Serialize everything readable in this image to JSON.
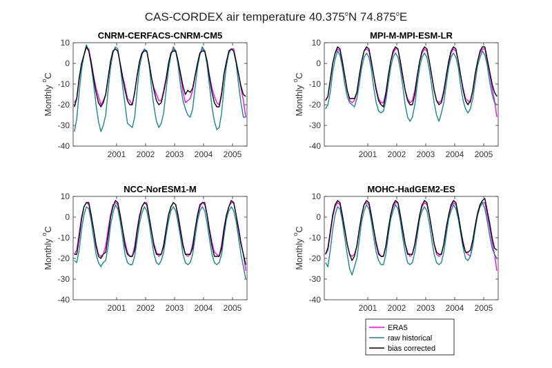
{
  "figure": {
    "title": "CAS-CORDEX air temperature 40.375",
    "title_deg1": "o",
    "title_mid": "N 74.875",
    "title_deg2": "o",
    "title_end": "E"
  },
  "colors": {
    "era5": "#ff00ff",
    "raw": "#138a87",
    "bias": "#000000"
  },
  "legend": {
    "placement": "bottom-right",
    "items": [
      "ERA5",
      "raw historical",
      "bias corrected"
    ]
  },
  "axis": {
    "ylabel_text": "Monthly ",
    "ylabel_sup": "o",
    "ylabel_unit": "C",
    "yticks": [
      "10",
      "0",
      "-10",
      "-20",
      "-30",
      "-40"
    ],
    "xticks": [
      "2001",
      "2002",
      "2003",
      "2004",
      "2005"
    ]
  },
  "chart_data": [
    {
      "type": "line",
      "title": "CNRM-CERFACS-CNRM-CM5",
      "xlim": [
        2000.0,
        2006.0
      ],
      "ylim": [
        -40,
        10
      ],
      "x_start": 2000.04,
      "x_step_months": 1,
      "series": [
        {
          "name": "ERA5",
          "values": [
            -19,
            -17,
            -8,
            0,
            4,
            8,
            7,
            1,
            -6,
            -12,
            -16,
            -20,
            -18,
            -15,
            -7,
            1,
            6,
            7,
            6,
            0,
            -6,
            -11,
            -17,
            -18,
            -20,
            -14,
            -6,
            1,
            5,
            7,
            6,
            0,
            -7,
            -12,
            -15,
            -18,
            -18,
            -13,
            -7,
            0,
            5,
            7,
            6,
            1,
            -6,
            -14,
            -19,
            -18,
            -17,
            -13,
            -6,
            0,
            5,
            7,
            6,
            1,
            -6,
            -12,
            -16,
            -19,
            -20,
            -14,
            -5,
            1,
            5,
            7,
            7,
            1,
            -5,
            -12,
            -18,
            -26
          ]
        },
        {
          "name": "raw historical",
          "values": [
            -33,
            -27,
            -14,
            -3,
            4,
            9,
            6,
            -1,
            -10,
            -20,
            -28,
            -33,
            -30,
            -25,
            -13,
            -2,
            5,
            8,
            7,
            -1,
            -11,
            -20,
            -29,
            -30,
            -31,
            -26,
            -13,
            -2,
            4,
            7,
            6,
            -1,
            -12,
            -21,
            -28,
            -31,
            -29,
            -24,
            -13,
            -3,
            4,
            8,
            6,
            -1,
            -11,
            -18,
            -22,
            -25,
            -26,
            -22,
            -12,
            -2,
            4,
            8,
            6,
            -1,
            -11,
            -21,
            -28,
            -32,
            -31,
            -24,
            -11,
            -1,
            5,
            7,
            6,
            0,
            -10,
            -19,
            -26,
            -26
          ]
        },
        {
          "name": "bias corrected",
          "values": [
            -21,
            -17,
            -7,
            0,
            4,
            8,
            6,
            0,
            -7,
            -14,
            -19,
            -21,
            -19,
            -15,
            -7,
            1,
            6,
            7,
            6,
            0,
            -7,
            -13,
            -18,
            -20,
            -20,
            -14,
            -6,
            1,
            5,
            6,
            6,
            0,
            -7,
            -13,
            -18,
            -20,
            -19,
            -14,
            -8,
            0,
            5,
            6,
            6,
            1,
            -5,
            -11,
            -15,
            -13,
            -14,
            -12,
            -6,
            0,
            5,
            6,
            6,
            1,
            -7,
            -14,
            -19,
            -21,
            -21,
            -15,
            -5,
            1,
            6,
            7,
            6,
            1,
            -5,
            -11,
            -15,
            -16
          ]
        }
      ]
    },
    {
      "type": "line",
      "title": "MPI-M-MPI-ESM-LR",
      "xlim": [
        2000.0,
        2006.0
      ],
      "ylim": [
        -40,
        10
      ],
      "x_start": 2000.04,
      "x_step_months": 1,
      "series": [
        {
          "name": "ERA5",
          "values": [
            -18,
            -16,
            -8,
            0,
            5,
            7,
            6,
            0,
            -6,
            -13,
            -18,
            -19,
            -18,
            -14,
            -6,
            1,
            6,
            7,
            6,
            0,
            -6,
            -12,
            -17,
            -19,
            -19,
            -14,
            -6,
            1,
            5,
            7,
            7,
            0,
            -7,
            -13,
            -17,
            -19,
            -18,
            -13,
            -6,
            1,
            5,
            7,
            6,
            1,
            -6,
            -13,
            -18,
            -19,
            -18,
            -13,
            -6,
            0,
            5,
            7,
            6,
            1,
            -6,
            -12,
            -17,
            -18,
            -19,
            -13,
            -5,
            1,
            5,
            7,
            7,
            1,
            -5,
            -12,
            -18,
            -26
          ]
        },
        {
          "name": "raw historical",
          "values": [
            -22,
            -20,
            -14,
            -4,
            2,
            6,
            4,
            -2,
            -10,
            -16,
            -19,
            -20,
            -21,
            -17,
            -10,
            -2,
            3,
            5,
            3,
            -3,
            -12,
            -19,
            -23,
            -24,
            -23,
            -18,
            -10,
            -2,
            3,
            5,
            3,
            -3,
            -11,
            -20,
            -26,
            -28,
            -26,
            -20,
            -10,
            -2,
            3,
            5,
            3,
            -3,
            -11,
            -19,
            -25,
            -28,
            -24,
            -19,
            -10,
            -2,
            3,
            5,
            3,
            -2,
            -11,
            -18,
            -22,
            -24,
            -22,
            -17,
            -9,
            -1,
            3,
            6,
            4,
            -1,
            -9,
            -15,
            -19,
            -20
          ]
        },
        {
          "name": "bias corrected",
          "values": [
            -18,
            -16,
            -8,
            0,
            5,
            8,
            7,
            1,
            -6,
            -13,
            -17,
            -17,
            -17,
            -14,
            -6,
            1,
            6,
            8,
            7,
            1,
            -6,
            -13,
            -18,
            -20,
            -21,
            -15,
            -6,
            1,
            6,
            8,
            7,
            1,
            -6,
            -13,
            -18,
            -20,
            -20,
            -15,
            -6,
            1,
            6,
            8,
            7,
            1,
            -6,
            -13,
            -18,
            -20,
            -19,
            -14,
            -6,
            1,
            6,
            8,
            7,
            1,
            -6,
            -13,
            -18,
            -20,
            -18,
            -13,
            -5,
            1,
            6,
            8,
            8,
            2,
            -4,
            -10,
            -14,
            -16
          ]
        }
      ]
    },
    {
      "type": "line",
      "title": "NCC-NorESM1-M",
      "xlim": [
        2000.0,
        2006.0
      ],
      "ylim": [
        -40,
        10
      ],
      "x_start": 2000.04,
      "x_step_months": 1,
      "series": [
        {
          "name": "ERA5",
          "values": [
            -18,
            -16,
            -8,
            0,
            5,
            7,
            6,
            0,
            -6,
            -13,
            -18,
            -19,
            -18,
            -14,
            -6,
            1,
            6,
            7,
            6,
            0,
            -6,
            -12,
            -17,
            -19,
            -19,
            -14,
            -6,
            1,
            5,
            7,
            7,
            0,
            -7,
            -13,
            -17,
            -19,
            -18,
            -13,
            -6,
            1,
            5,
            7,
            6,
            1,
            -6,
            -13,
            -18,
            -19,
            -18,
            -13,
            -6,
            0,
            5,
            7,
            6,
            1,
            -6,
            -12,
            -17,
            -18,
            -19,
            -13,
            -5,
            1,
            5,
            7,
            7,
            1,
            -5,
            -12,
            -18,
            -26
          ]
        },
        {
          "name": "raw historical",
          "values": [
            -21,
            -22,
            -16,
            -6,
            1,
            5,
            4,
            -2,
            -10,
            -18,
            -22,
            -24,
            -22,
            -21,
            -14,
            -4,
            2,
            6,
            4,
            -2,
            -10,
            -18,
            -22,
            -23,
            -23,
            -19,
            -11,
            -3,
            2,
            5,
            3,
            -3,
            -11,
            -18,
            -22,
            -23,
            -21,
            -17,
            -9,
            -2,
            3,
            5,
            3,
            -3,
            -10,
            -18,
            -22,
            -23,
            -22,
            -18,
            -10,
            -2,
            3,
            5,
            3,
            -3,
            -11,
            -18,
            -22,
            -23,
            -22,
            -18,
            -9,
            -1,
            3,
            5,
            3,
            -2,
            -10,
            -18,
            -24,
            -30
          ]
        },
        {
          "name": "bias corrected",
          "values": [
            -18,
            -18,
            -10,
            -1,
            5,
            7,
            7,
            1,
            -6,
            -14,
            -19,
            -20,
            -18,
            -17,
            -9,
            0,
            5,
            8,
            7,
            1,
            -6,
            -14,
            -18,
            -19,
            -19,
            -16,
            -7,
            0,
            5,
            7,
            6,
            0,
            -7,
            -14,
            -18,
            -18,
            -18,
            -14,
            -6,
            1,
            5,
            7,
            6,
            0,
            -7,
            -14,
            -18,
            -18,
            -18,
            -15,
            -6,
            1,
            6,
            7,
            7,
            1,
            -7,
            -14,
            -19,
            -19,
            -19,
            -15,
            -6,
            1,
            5,
            8,
            7,
            1,
            -6,
            -13,
            -18,
            -23
          ]
        }
      ]
    },
    {
      "type": "line",
      "title": "MOHC-HadGEM2-ES",
      "xlim": [
        2000.0,
        2006.0
      ],
      "ylim": [
        -40,
        10
      ],
      "x_start": 2000.04,
      "x_step_months": 1,
      "series": [
        {
          "name": "ERA5",
          "values": [
            -18,
            -16,
            -8,
            0,
            5,
            7,
            6,
            0,
            -6,
            -13,
            -18,
            -19,
            -18,
            -14,
            -6,
            1,
            6,
            7,
            6,
            0,
            -6,
            -12,
            -17,
            -19,
            -19,
            -14,
            -6,
            1,
            5,
            7,
            7,
            0,
            -7,
            -13,
            -17,
            -19,
            -18,
            -13,
            -6,
            1,
            5,
            7,
            6,
            1,
            -6,
            -13,
            -18,
            -19,
            -18,
            -13,
            -6,
            0,
            5,
            7,
            6,
            1,
            -6,
            -12,
            -17,
            -18,
            -19,
            -13,
            -5,
            1,
            5,
            7,
            7,
            1,
            -5,
            -12,
            -18,
            -26
          ]
        },
        {
          "name": "raw historical",
          "values": [
            -22,
            -24,
            -16,
            -6,
            1,
            5,
            4,
            -2,
            -10,
            -18,
            -25,
            -28,
            -24,
            -20,
            -11,
            -2,
            3,
            6,
            4,
            -2,
            -10,
            -17,
            -21,
            -23,
            -23,
            -18,
            -9,
            -1,
            3,
            6,
            4,
            -2,
            -10,
            -17,
            -22,
            -23,
            -22,
            -17,
            -9,
            -1,
            3,
            5,
            3,
            -3,
            -11,
            -18,
            -22,
            -23,
            -22,
            -17,
            -9,
            -1,
            3,
            6,
            4,
            -1,
            -8,
            -15,
            -20,
            -21,
            -19,
            -14,
            -6,
            1,
            5,
            7,
            4,
            -2,
            -9,
            -15,
            -18,
            -20
          ]
        },
        {
          "name": "bias corrected",
          "values": [
            -18,
            -15,
            -7,
            1,
            6,
            8,
            7,
            1,
            -6,
            -13,
            -18,
            -21,
            -19,
            -14,
            -6,
            1,
            6,
            8,
            7,
            1,
            -6,
            -13,
            -18,
            -19,
            -19,
            -14,
            -6,
            1,
            6,
            8,
            7,
            1,
            -6,
            -13,
            -18,
            -18,
            -18,
            -13,
            -6,
            1,
            6,
            8,
            7,
            1,
            -6,
            -13,
            -17,
            -18,
            -18,
            -13,
            -5,
            1,
            6,
            8,
            7,
            1,
            -6,
            -13,
            -17,
            -17,
            -16,
            -11,
            -4,
            2,
            6,
            8,
            9,
            3,
            -3,
            -10,
            -15,
            -16
          ]
        }
      ]
    }
  ]
}
